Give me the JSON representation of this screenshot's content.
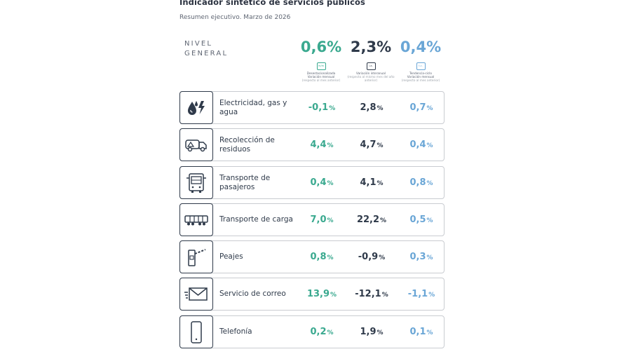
{
  "title": "Indicador sintético de servicios públicos",
  "subtitle": "Resumen ejecutivo. Marzo de 2026",
  "general": {
    "label_line1": "NIVEL",
    "label_line2": "GENERAL",
    "columns": [
      {
        "value": "0,6%",
        "badge": "m/m",
        "desc": "Desestacionalizada",
        "desc2": "Variación mensual",
        "desc3": "(respecto al mes anterior)",
        "color": "#3aa98f"
      },
      {
        "value": "2,3%",
        "badge": "i.a.",
        "desc": "Variación interanual",
        "desc2": "",
        "desc3": "(respecto al mismo mes del año anterior)",
        "color": "#2f3a4a"
      },
      {
        "value": "0,4%",
        "badge": "t.c.",
        "desc": "Tendencia-ciclo",
        "desc2": "Variación mensual",
        "desc3": "(respecto al mes anterior)",
        "color": "#6aa6d6"
      }
    ]
  },
  "pct_sign": "%",
  "rows": [
    {
      "icon": "electricity-gas-water-icon",
      "label": "Electricidad, gas y agua",
      "v1": "-0,1",
      "v2": "2,8",
      "v3": "0,7"
    },
    {
      "icon": "garbage-truck-icon",
      "label": "Recolección de residuos",
      "v1": "4,4",
      "v2": "4,7",
      "v3": "0,4"
    },
    {
      "icon": "bus-icon",
      "label": "Transporte de pasajeros",
      "v1": "0,4",
      "v2": "4,1",
      "v3": "0,8"
    },
    {
      "icon": "freight-train-icon",
      "label": "Transporte de carga",
      "v1": "7,0",
      "v2": "22,2",
      "v3": "0,5"
    },
    {
      "icon": "toll-barrier-icon",
      "label": "Peajes",
      "v1": "0,8",
      "v2": "-0,9",
      "v3": "0,3"
    },
    {
      "icon": "mail-envelope-icon",
      "label": "Servicio de correo",
      "v1": "13,9",
      "v2": "-12,1",
      "v3": "-1,1"
    },
    {
      "icon": "mobile-phone-icon",
      "label": "Telefonía",
      "v1": "0,2",
      "v2": "1,9",
      "v3": "0,1"
    }
  ]
}
